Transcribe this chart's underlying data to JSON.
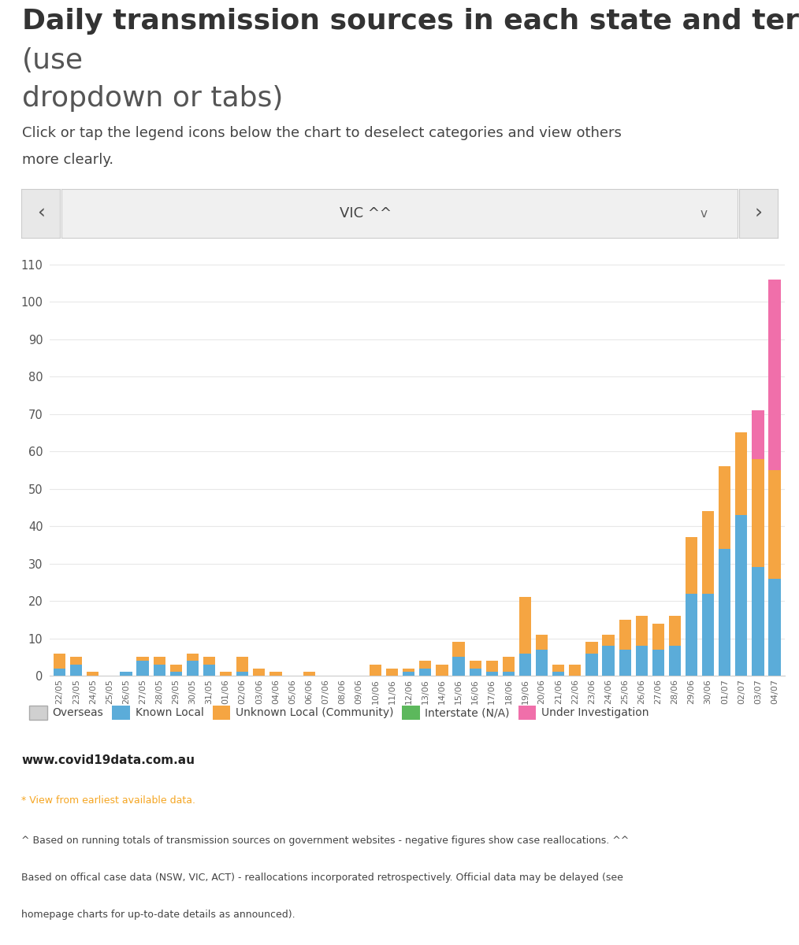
{
  "title_bold": "Daily transmission sources in each state and territory",
  "title_normal": " (use\ndropdown or tabs)",
  "subtitle": "Click or tap the legend icons below the chart to deselect categories and view others\nmore clearly.",
  "dropdown_label": "VIC ^^",
  "dates": [
    "22/05",
    "23/05",
    "24/05",
    "25/05",
    "26/05",
    "27/05",
    "28/05",
    "29/05",
    "30/05",
    "31/05",
    "01/06",
    "02/06",
    "03/06",
    "04/06",
    "05/06",
    "06/06",
    "07/06",
    "08/06",
    "09/06",
    "10/06",
    "11/06",
    "12/06",
    "13/06",
    "14/06",
    "15/06",
    "16/06",
    "17/06",
    "18/06",
    "19/06",
    "20/06",
    "21/06",
    "22/06",
    "23/06",
    "24/06",
    "25/06",
    "26/06",
    "27/06",
    "28/06",
    "29/06",
    "30/06",
    "01/07",
    "02/07",
    "03/07",
    "04/07"
  ],
  "overseas": [
    0,
    0,
    0,
    0,
    0,
    0,
    0,
    0,
    0,
    0,
    0,
    0,
    0,
    0,
    0,
    0,
    0,
    0,
    0,
    0,
    0,
    0,
    0,
    0,
    0,
    0,
    0,
    0,
    0,
    0,
    0,
    0,
    0,
    0,
    0,
    0,
    0,
    0,
    0,
    0,
    0,
    0,
    0,
    0
  ],
  "known_local": [
    2,
    3,
    0,
    0,
    1,
    4,
    3,
    1,
    4,
    3,
    0,
    1,
    0,
    0,
    0,
    0,
    0,
    0,
    0,
    0,
    0,
    1,
    2,
    0,
    5,
    2,
    1,
    1,
    6,
    7,
    1,
    0,
    6,
    8,
    7,
    8,
    7,
    8,
    22,
    22,
    34,
    43,
    29,
    26
  ],
  "unknown_local": [
    4,
    2,
    1,
    0,
    0,
    1,
    2,
    2,
    2,
    2,
    1,
    4,
    2,
    1,
    0,
    1,
    0,
    0,
    0,
    3,
    2,
    1,
    2,
    3,
    4,
    2,
    3,
    4,
    15,
    4,
    2,
    3,
    3,
    3,
    8,
    8,
    7,
    8,
    15,
    22,
    22,
    22,
    29,
    29
  ],
  "interstate": [
    0,
    0,
    0,
    0,
    0,
    0,
    0,
    0,
    0,
    0,
    0,
    0,
    0,
    0,
    0,
    0,
    0,
    0,
    0,
    0,
    0,
    0,
    0,
    0,
    0,
    0,
    0,
    0,
    0,
    0,
    0,
    0,
    0,
    0,
    0,
    0,
    0,
    0,
    0,
    0,
    0,
    0,
    0,
    0
  ],
  "under_investigation": [
    0,
    0,
    0,
    0,
    0,
    0,
    0,
    0,
    0,
    0,
    0,
    0,
    0,
    0,
    0,
    0,
    0,
    0,
    0,
    0,
    0,
    0,
    0,
    0,
    0,
    0,
    0,
    0,
    0,
    0,
    0,
    0,
    0,
    0,
    0,
    0,
    0,
    0,
    0,
    0,
    0,
    0,
    13,
    51
  ],
  "colors": {
    "overseas": "#d0d0d0",
    "known_local": "#5bacd9",
    "unknown_local": "#f5a542",
    "interstate": "#5cb85c",
    "under_investigation": "#f06faa"
  },
  "ylim": [
    0,
    115
  ],
  "yticks": [
    0,
    10,
    20,
    30,
    40,
    50,
    60,
    70,
    80,
    90,
    100,
    110
  ],
  "bg_color": "#ffffff",
  "website": "www.covid19data.com.au",
  "note_orange": "* View from earliest available data.",
  "note2": "^ Based on running totals of transmission sources on government websites - negative figures show case reallocations. ^^",
  "note3": "Based on offical case data (NSW, VIC, ACT) - reallocations incorporated retrospectively. Official data may be delayed (see",
  "note4": "homepage charts for up-to-date details as announced)."
}
